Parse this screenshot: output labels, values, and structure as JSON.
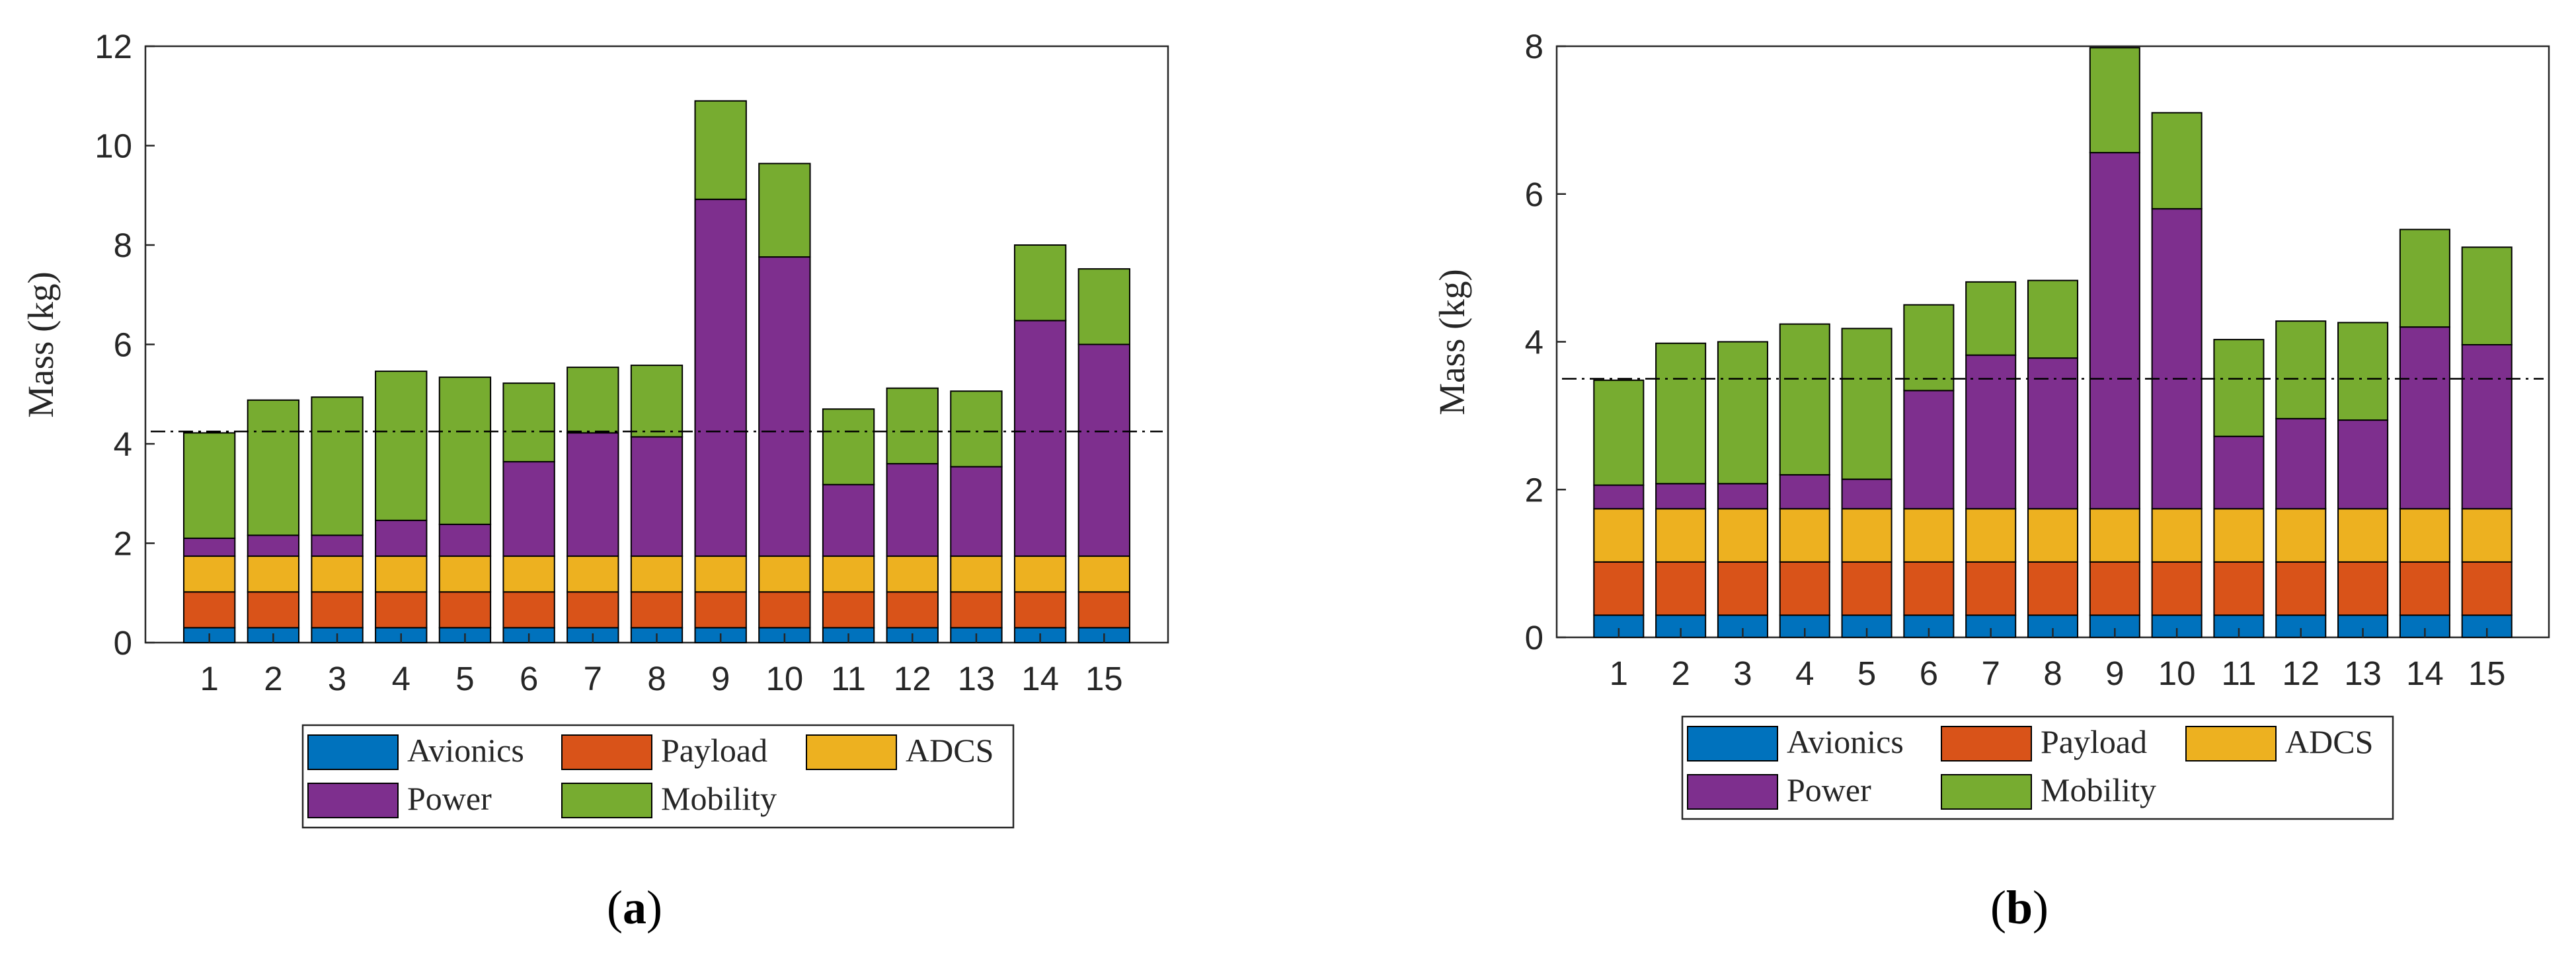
{
  "colors": {
    "Avionics": "#0072BD",
    "Payload": "#D95319",
    "ADCS": "#EDB120",
    "Power": "#7E2F8E",
    "Mobility": "#77AC30",
    "axis": "#262626",
    "reference_line": "#000000"
  },
  "chart_data": [
    {
      "type": "bar",
      "stacked": true,
      "panel_label": "a",
      "categories": [
        "1",
        "2",
        "3",
        "4",
        "5",
        "6",
        "7",
        "8",
        "9",
        "10",
        "11",
        "12",
        "13",
        "14",
        "15"
      ],
      "ylabel": "Mass (kg)",
      "ylim": [
        0,
        12
      ],
      "yticks": [
        0,
        2,
        4,
        6,
        8,
        10,
        12
      ],
      "reference_line": 4.25,
      "grid": false,
      "legend": {
        "placement": "below",
        "columns": 3,
        "entries": [
          "Avionics",
          "Payload",
          "ADCS",
          "Power",
          "Mobility"
        ]
      },
      "series": [
        {
          "name": "Avionics",
          "values": [
            0.3,
            0.3,
            0.3,
            0.3,
            0.3,
            0.3,
            0.3,
            0.3,
            0.3,
            0.3,
            0.3,
            0.3,
            0.3,
            0.3,
            0.3
          ]
        },
        {
          "name": "Payload",
          "values": [
            0.72,
            0.72,
            0.72,
            0.72,
            0.72,
            0.72,
            0.72,
            0.72,
            0.72,
            0.72,
            0.72,
            0.72,
            0.72,
            0.72,
            0.72
          ]
        },
        {
          "name": "ADCS",
          "values": [
            0.72,
            0.72,
            0.72,
            0.72,
            0.72,
            0.72,
            0.72,
            0.72,
            0.72,
            0.72,
            0.72,
            0.72,
            0.72,
            0.72,
            0.72
          ]
        },
        {
          "name": "Power",
          "values": [
            0.36,
            0.42,
            0.42,
            0.72,
            0.64,
            1.9,
            2.48,
            2.4,
            7.18,
            6.02,
            1.44,
            1.86,
            1.8,
            4.74,
            4.26
          ]
        },
        {
          "name": "Mobility",
          "values": [
            2.12,
            2.72,
            2.78,
            3.0,
            2.96,
            1.58,
            1.32,
            1.44,
            1.98,
            1.88,
            1.52,
            1.52,
            1.52,
            1.52,
            1.52
          ]
        }
      ]
    },
    {
      "type": "bar",
      "stacked": true,
      "panel_label": "b",
      "categories": [
        "1",
        "2",
        "3",
        "4",
        "5",
        "6",
        "7",
        "8",
        "9",
        "10",
        "11",
        "12",
        "13",
        "14",
        "15"
      ],
      "ylabel": "Mass (kg)",
      "ylim": [
        0,
        8
      ],
      "yticks": [
        0,
        2,
        4,
        6,
        8
      ],
      "reference_line": 3.5,
      "grid": false,
      "legend": {
        "placement": "below",
        "columns": 3,
        "entries": [
          "Avionics",
          "Payload",
          "ADCS",
          "Power",
          "Mobility"
        ]
      },
      "series": [
        {
          "name": "Avionics",
          "values": [
            0.3,
            0.3,
            0.3,
            0.3,
            0.3,
            0.3,
            0.3,
            0.3,
            0.3,
            0.3,
            0.3,
            0.3,
            0.3,
            0.3,
            0.3
          ]
        },
        {
          "name": "Payload",
          "values": [
            0.72,
            0.72,
            0.72,
            0.72,
            0.72,
            0.72,
            0.72,
            0.72,
            0.72,
            0.72,
            0.72,
            0.72,
            0.72,
            0.72,
            0.72
          ]
        },
        {
          "name": "ADCS",
          "values": [
            0.72,
            0.72,
            0.72,
            0.72,
            0.72,
            0.72,
            0.72,
            0.72,
            0.72,
            0.72,
            0.72,
            0.72,
            0.72,
            0.72,
            0.72
          ]
        },
        {
          "name": "Power",
          "values": [
            0.32,
            0.34,
            0.34,
            0.46,
            0.4,
            1.6,
            2.08,
            2.04,
            4.82,
            4.06,
            0.98,
            1.22,
            1.2,
            2.46,
            2.22
          ]
        },
        {
          "name": "Mobility",
          "values": [
            1.42,
            1.9,
            1.92,
            2.04,
            2.04,
            1.16,
            0.99,
            1.05,
            1.42,
            1.3,
            1.31,
            1.32,
            1.32,
            1.32,
            1.32
          ]
        }
      ]
    }
  ]
}
